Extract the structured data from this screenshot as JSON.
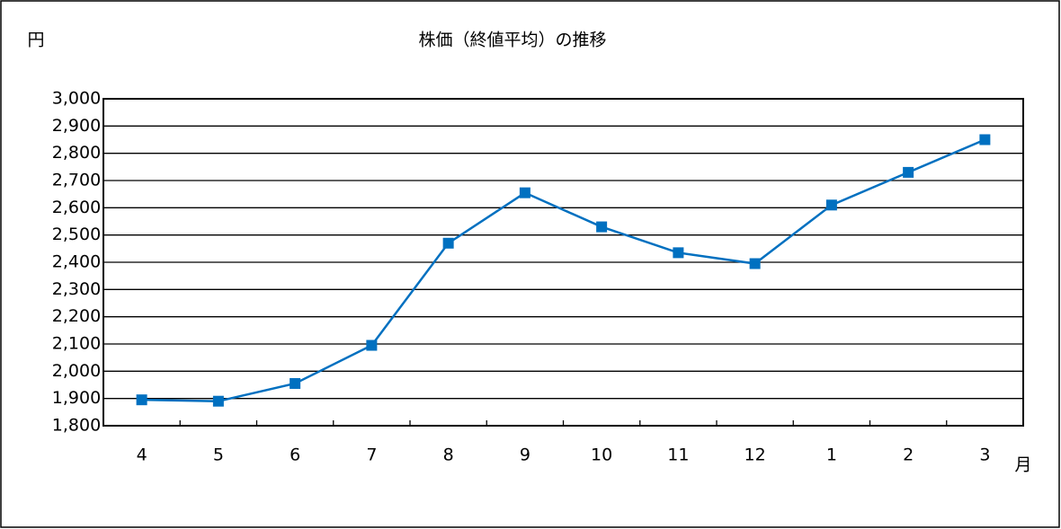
{
  "chart_data": {
    "type": "line",
    "title": "株価（終値平均）の推移",
    "y_unit": "円",
    "x_unit": "月",
    "categories": [
      "4",
      "5",
      "6",
      "7",
      "8",
      "9",
      "10",
      "11",
      "12",
      "1",
      "2",
      "3"
    ],
    "series": [
      {
        "name": "株価",
        "color": "#0070c0",
        "values": [
          1895,
          1890,
          1955,
          2095,
          2470,
          2655,
          2530,
          2435,
          2395,
          2610,
          2730,
          2850
        ]
      }
    ],
    "ylim": [
      1800,
      3000
    ],
    "yticks": [
      {
        "value": 1800,
        "label": "1,800"
      },
      {
        "value": 1900,
        "label": "1,900"
      },
      {
        "value": 2000,
        "label": "2,000"
      },
      {
        "value": 2100,
        "label": "2,100"
      },
      {
        "value": 2200,
        "label": "2,200"
      },
      {
        "value": 2300,
        "label": "2,300"
      },
      {
        "value": 2400,
        "label": "2,400"
      },
      {
        "value": 2500,
        "label": "2,500"
      },
      {
        "value": 2600,
        "label": "2,600"
      },
      {
        "value": 2700,
        "label": "2,700"
      },
      {
        "value": 2800,
        "label": "2,800"
      },
      {
        "value": 2900,
        "label": "2,900"
      },
      {
        "value": 3000,
        "label": "3,000"
      }
    ],
    "grid": true
  }
}
